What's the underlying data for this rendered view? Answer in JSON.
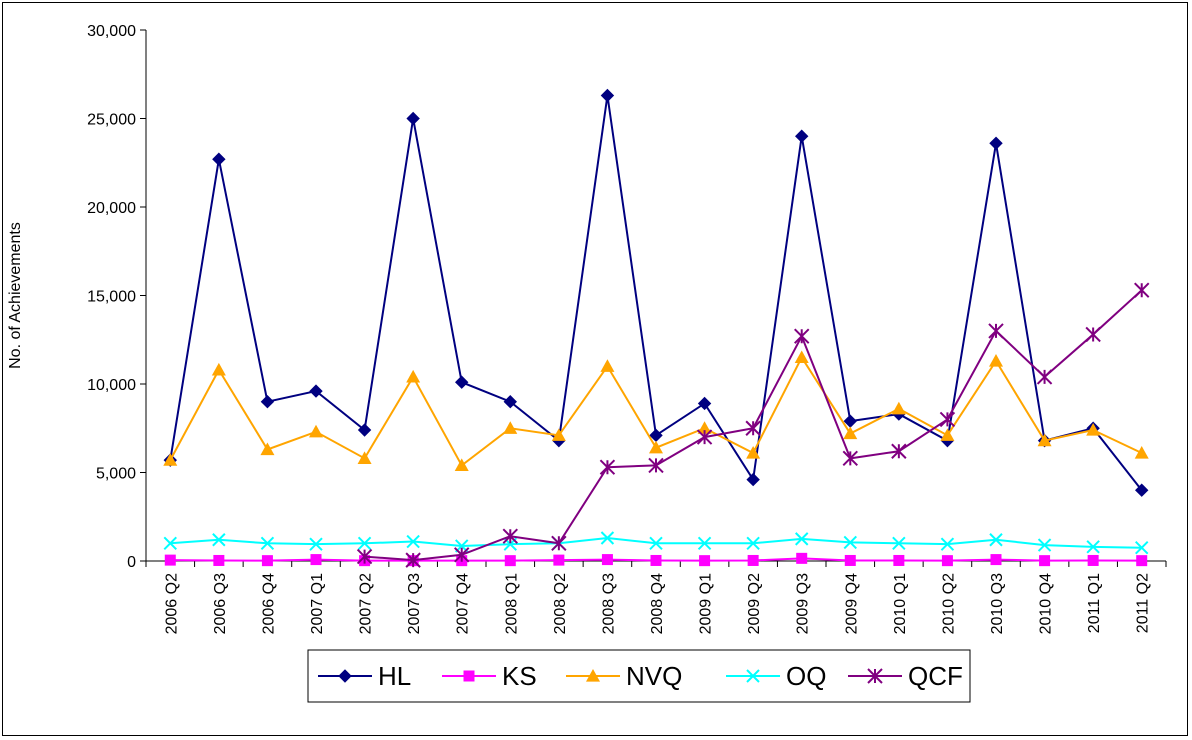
{
  "chart_data": {
    "type": "line",
    "title": "",
    "xlabel": "",
    "ylabel": "No. of Achievements",
    "ylim": [
      0,
      30000
    ],
    "yticks": [
      0,
      5000,
      10000,
      15000,
      20000,
      25000,
      30000
    ],
    "ytick_labels": [
      "0",
      "5,000",
      "10,000",
      "15,000",
      "20,000",
      "25,000",
      "30,000"
    ],
    "grid": false,
    "legend_position": "bottom",
    "categories": [
      "2006 Q2",
      "2006 Q3",
      "2006 Q4",
      "2007 Q1",
      "2007 Q2",
      "2007 Q3",
      "2007 Q4",
      "2008 Q1",
      "2008 Q2",
      "2008 Q3",
      "2008 Q4",
      "2009 Q1",
      "2009 Q2",
      "2009 Q3",
      "2009 Q4",
      "2010 Q1",
      "2010 Q2",
      "2010 Q3",
      "2010 Q4",
      "2011 Q1",
      "2011 Q2"
    ],
    "series": [
      {
        "name": "HL",
        "color": "#000080",
        "marker": "diamond",
        "values": [
          5700,
          22700,
          9000,
          9600,
          7400,
          25000,
          10100,
          9000,
          6800,
          26300,
          7100,
          8900,
          4600,
          24000,
          7900,
          8300,
          6800,
          23600,
          6800,
          7500,
          4000
        ]
      },
      {
        "name": "KS",
        "color": "#FF00FF",
        "marker": "square",
        "values": [
          50,
          30,
          20,
          80,
          20,
          20,
          20,
          20,
          50,
          80,
          30,
          20,
          30,
          150,
          30,
          30,
          20,
          80,
          20,
          30,
          20
        ]
      },
      {
        "name": "NVQ",
        "color": "#FFA500",
        "marker": "triangle",
        "values": [
          5700,
          10800,
          6300,
          7300,
          5800,
          10400,
          5400,
          7500,
          7100,
          11000,
          6400,
          7500,
          6100,
          11500,
          7200,
          8600,
          7100,
          11300,
          6800,
          7400,
          6100
        ]
      },
      {
        "name": "OQ",
        "color": "#00FFFF",
        "marker": "x",
        "values": [
          1000,
          1200,
          1000,
          950,
          1000,
          1100,
          850,
          950,
          1000,
          1300,
          1000,
          1000,
          1000,
          1250,
          1050,
          1000,
          950,
          1200,
          900,
          800,
          750
        ]
      },
      {
        "name": "QCF",
        "color": "#800080",
        "marker": "star",
        "values": [
          null,
          null,
          null,
          null,
          250,
          50,
          350,
          1400,
          1000,
          5300,
          5400,
          7000,
          7500,
          12700,
          5800,
          6200,
          8000,
          13000,
          10400,
          12800,
          15300
        ]
      }
    ]
  }
}
